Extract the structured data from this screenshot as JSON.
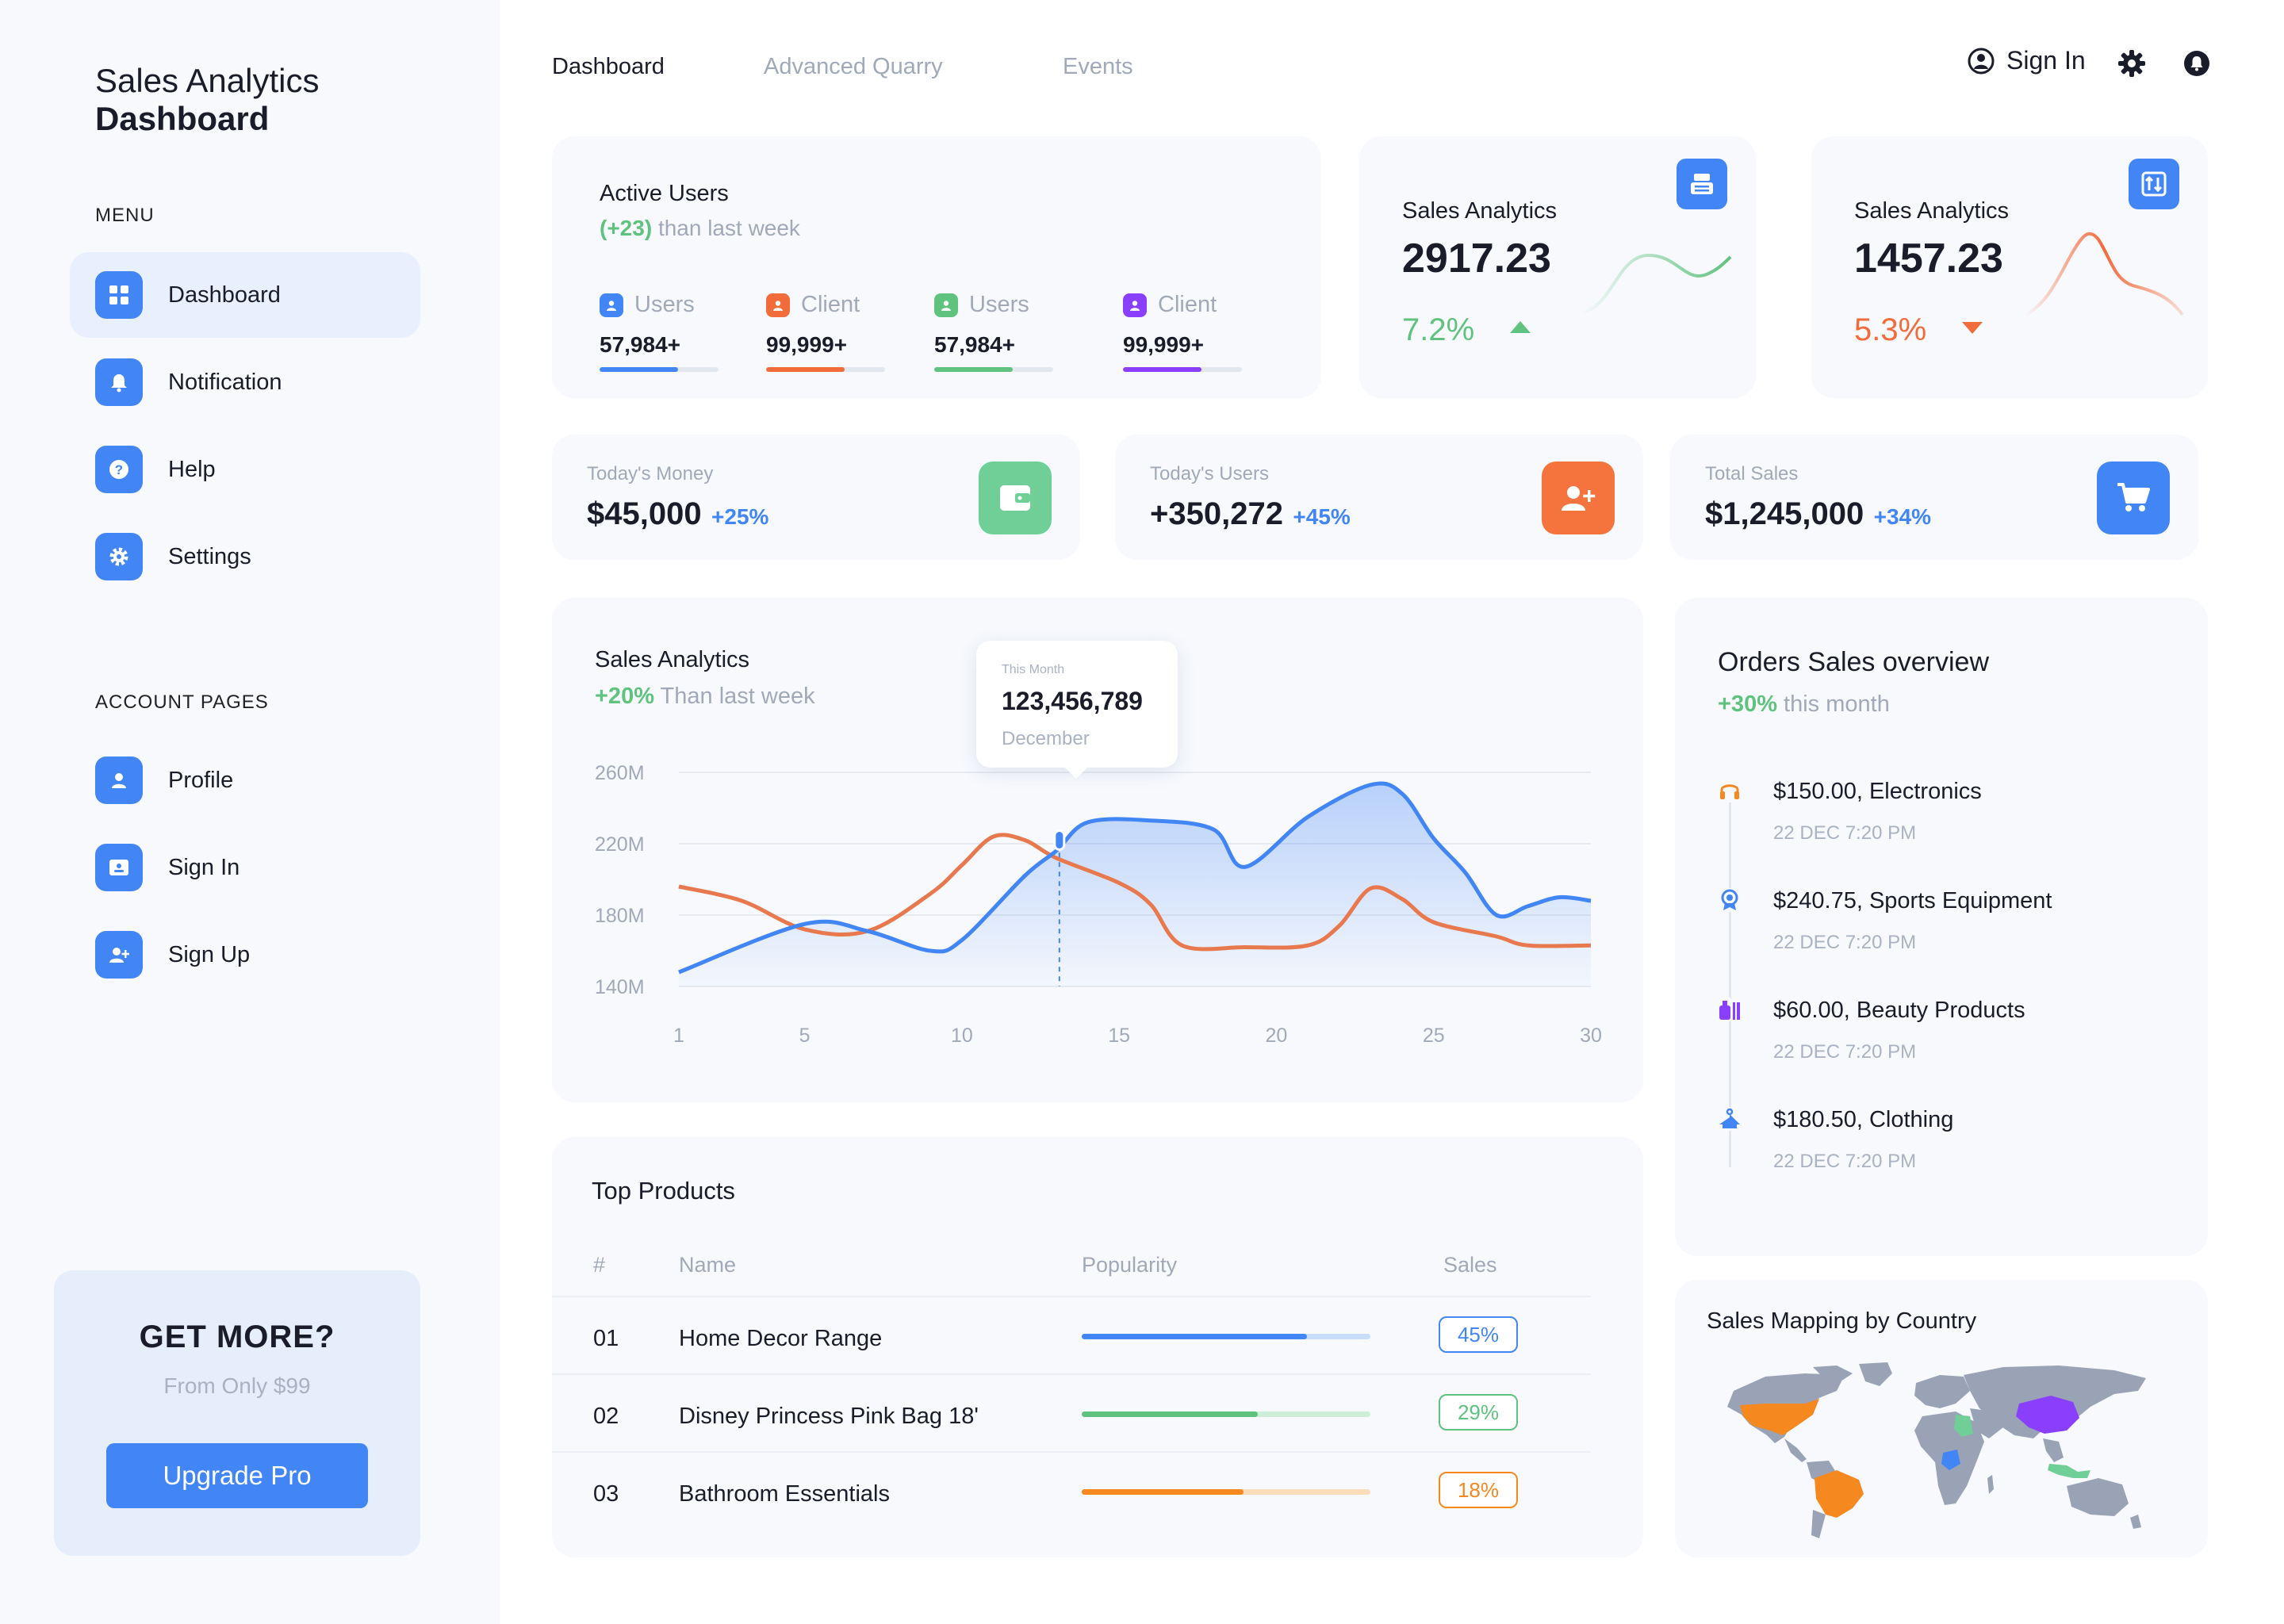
{
  "brand": {
    "line1": "Sales Analytics",
    "line2": "Dashboard"
  },
  "sidebar": {
    "menu_heading": "MENU",
    "menu": [
      {
        "label": "Dashboard",
        "icon": "grid-icon",
        "active": true
      },
      {
        "label": "Notification",
        "icon": "bell-icon"
      },
      {
        "label": "Help",
        "icon": "help-icon"
      },
      {
        "label": "Settings",
        "icon": "gear-icon"
      }
    ],
    "account_heading": "ACCOUNT PAGES",
    "account": [
      {
        "label": "Profile",
        "icon": "user-icon"
      },
      {
        "label": "Sign In",
        "icon": "id-card-icon"
      },
      {
        "label": "Sign Up",
        "icon": "user-plus-icon"
      }
    ],
    "promo": {
      "title": "GET MORE?",
      "subtitle": "From Only $99",
      "button": "Upgrade Pro"
    }
  },
  "topnav": {
    "tabs": [
      "Dashboard",
      "Advanced Quarry",
      "Events"
    ],
    "active_tab": "Dashboard",
    "sign_in": "Sign In"
  },
  "active_users": {
    "title": "Active Users",
    "delta": "(+23)",
    "delta_text": "than last week",
    "items": [
      {
        "label": "Users",
        "value": "57,984+",
        "color": "#4285f4",
        "progress": 0.66
      },
      {
        "label": "Client",
        "value": "99,999+",
        "color": "#f26b3a",
        "progress": 0.66
      },
      {
        "label": "Users",
        "value": "57,984+",
        "color": "#5fc27e",
        "progress": 0.66
      },
      {
        "label": "Client",
        "value": "99,999+",
        "color": "#8a3ffc",
        "progress": 0.66
      }
    ]
  },
  "mini_cards": [
    {
      "title": "Sales Analytics",
      "value": "2917.23",
      "change": "7.2%",
      "trend": "up",
      "color": "#5fc27e"
    },
    {
      "title": "Sales Analytics",
      "value": "1457.23",
      "change": "5.3%",
      "trend": "down",
      "color": "#f26b3a"
    }
  ],
  "stats": [
    {
      "label": "Today's Money",
      "value": "$45,000",
      "change": "+25%",
      "icon": "wallet-icon",
      "color": "#6fcf97"
    },
    {
      "label": "Today's Users",
      "value": "+350,272",
      "change": "+45%",
      "icon": "user-plus-icon",
      "color": "#f5743e"
    },
    {
      "label": "Total Sales",
      "value": "$1,245,000",
      "change": "+34%",
      "icon": "cart-icon",
      "color": "#4285f4"
    }
  ],
  "sales_chart": {
    "title": "Sales Analytics",
    "delta": "+20%",
    "delta_text": "Than last week",
    "tooltip": {
      "caption": "This Month",
      "value": "123,456,789",
      "label": "December"
    }
  },
  "chart_data": {
    "type": "area",
    "title": "Sales Analytics",
    "yticks": [
      "260M",
      "220M",
      "180M",
      "140M"
    ],
    "xticks": [
      "1",
      "5",
      "10",
      "15",
      "20",
      "25",
      "30"
    ],
    "ylim": [
      140,
      260
    ],
    "xlim": [
      1,
      30
    ],
    "grid": true,
    "series": [
      {
        "color": "#4285f4",
        "points": [
          [
            1,
            148
          ],
          [
            5,
            175
          ],
          [
            7,
            171
          ],
          [
            9,
            160
          ],
          [
            10,
            166
          ],
          [
            12,
            202
          ],
          [
            13,
            216
          ],
          [
            14,
            232
          ],
          [
            16,
            233
          ],
          [
            18,
            228
          ],
          [
            19,
            207
          ],
          [
            21,
            235
          ],
          [
            23,
            253
          ],
          [
            24,
            248
          ],
          [
            25,
            223
          ],
          [
            26,
            204
          ],
          [
            27,
            180
          ],
          [
            28,
            185
          ],
          [
            29,
            190
          ],
          [
            30,
            188
          ]
        ]
      },
      {
        "color": "#e8794f",
        "points": [
          [
            1,
            196
          ],
          [
            3,
            188
          ],
          [
            5,
            172
          ],
          [
            7,
            171
          ],
          [
            9,
            192
          ],
          [
            10,
            208
          ],
          [
            11,
            224
          ],
          [
            12,
            222
          ],
          [
            13,
            212
          ],
          [
            15,
            198
          ],
          [
            16,
            186
          ],
          [
            17,
            163
          ],
          [
            19,
            162
          ],
          [
            21,
            163
          ],
          [
            22,
            174
          ],
          [
            23,
            195
          ],
          [
            24,
            189
          ],
          [
            25,
            176
          ],
          [
            27,
            168
          ],
          [
            28,
            163
          ],
          [
            30,
            163
          ]
        ]
      }
    ],
    "highlight_x": 13.1
  },
  "top_products": {
    "title": "Top Products",
    "columns": [
      "#",
      "Name",
      "Popularity",
      "Sales"
    ],
    "rows": [
      {
        "num": "01",
        "name": "Home Decor Range",
        "popularity": 0.78,
        "sales": "45%",
        "color": "#4285f4",
        "track": "#c9dcfc"
      },
      {
        "num": "02",
        "name": "Disney Princess Pink Bag 18'",
        "popularity": 0.61,
        "sales": "29%",
        "color": "#5fc27e",
        "track": "#cdeed8"
      },
      {
        "num": "03",
        "name": "Bathroom Essentials",
        "popularity": 0.56,
        "sales": "18%",
        "color": "#f5881f",
        "track": "#fbdcb9"
      }
    ]
  },
  "orders": {
    "title": "Orders Sales overview",
    "delta": "+30%",
    "delta_text": "this month",
    "items": [
      {
        "title": "$150.00, Electronics",
        "date": "22 DEC 7:20 PM",
        "icon": "headphones-icon",
        "color": "#f5881f"
      },
      {
        "title": "$240.75, Sports Equipment",
        "date": "22 DEC 7:20 PM",
        "icon": "medal-icon",
        "color": "#4285f4"
      },
      {
        "title": "$60.00, Beauty Products",
        "date": "22 DEC 7:20 PM",
        "icon": "cosmetics-icon",
        "color": "#8a3ffc"
      },
      {
        "title": "$180.50, Clothing",
        "date": "22 DEC 7:20 PM",
        "icon": "hanger-icon",
        "color": "#4285f4"
      }
    ]
  },
  "map": {
    "title": "Sales Mapping by Country"
  }
}
